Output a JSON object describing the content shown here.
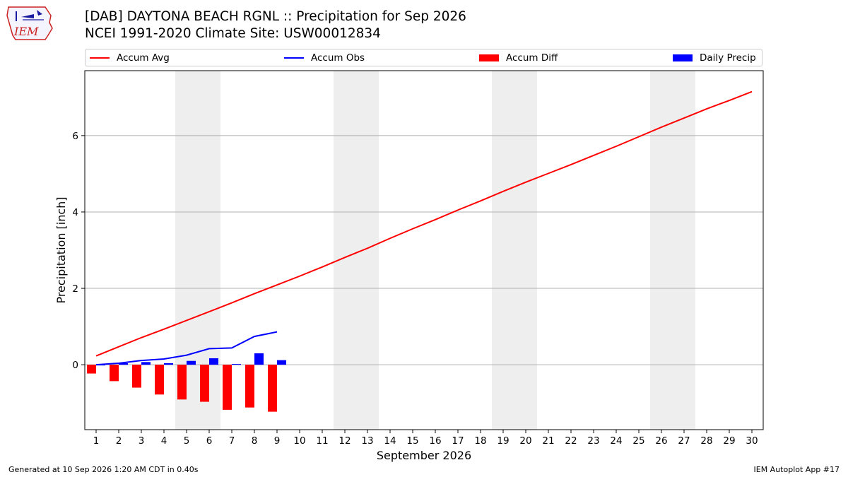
{
  "header": {
    "title_line1": "[DAB] DAYTONA BEACH RGNL :: Precipitation for Sep 2026",
    "title_line2": "NCEI 1991-2020 Climate Site: USW00012834",
    "logo_text": "IEM"
  },
  "legend": [
    {
      "label": "Accum Avg",
      "kind": "line",
      "color": "#ff0000"
    },
    {
      "label": "Accum Obs",
      "kind": "line",
      "color": "#0000ff"
    },
    {
      "label": "Accum Diff",
      "kind": "patch",
      "color": "#ff0000"
    },
    {
      "label": "Daily Precip",
      "kind": "patch",
      "color": "#0000ff"
    }
  ],
  "footer": {
    "left": "Generated at 10 Sep 2026 1:20 AM CDT in 0.40s",
    "right": "IEM Autoplot App #17"
  },
  "chart_data": {
    "type": "bar",
    "title": "[DAB] DAYTONA BEACH RGNL :: Precipitation for Sep 2026",
    "xlabel": "September 2026",
    "ylabel": "Precipitation [inch]",
    "xlim": [
      0.5,
      30.5
    ],
    "ylim": [
      -1.7,
      7.7
    ],
    "xticks": [
      1,
      2,
      3,
      4,
      5,
      6,
      7,
      8,
      9,
      10,
      11,
      12,
      13,
      14,
      15,
      16,
      17,
      18,
      19,
      20,
      21,
      22,
      23,
      24,
      25,
      26,
      27,
      28,
      29,
      30
    ],
    "yticks": [
      0,
      2,
      4,
      6
    ],
    "grid": "y",
    "legend_position": "top",
    "weekend_bands": [
      [
        4.5,
        6.5
      ],
      [
        11.5,
        13.5
      ],
      [
        18.5,
        20.5
      ],
      [
        25.5,
        27.5
      ]
    ],
    "colors": {
      "avg": "#ff0000",
      "obs": "#0000ff",
      "diff": "#ff0000",
      "daily": "#0000ff",
      "band": "#eeeeee",
      "grid": "#b0b0b0"
    },
    "series": [
      {
        "name": "Accum Avg",
        "type": "line",
        "x": [
          1,
          2,
          3,
          4,
          5,
          6,
          7,
          8,
          9,
          10,
          11,
          12,
          13,
          14,
          15,
          16,
          17,
          18,
          19,
          20,
          21,
          22,
          23,
          24,
          25,
          26,
          27,
          28,
          29,
          30
        ],
        "values": [
          0.23,
          0.47,
          0.71,
          0.93,
          1.16,
          1.39,
          1.62,
          1.86,
          2.09,
          2.32,
          2.56,
          2.81,
          3.05,
          3.31,
          3.56,
          3.8,
          4.05,
          4.29,
          4.54,
          4.78,
          5.01,
          5.24,
          5.48,
          5.72,
          5.97,
          6.22,
          6.46,
          6.7,
          6.92,
          7.15
        ]
      },
      {
        "name": "Accum Obs",
        "type": "line",
        "x": [
          1,
          2,
          3,
          4,
          5,
          6,
          7,
          8,
          9
        ],
        "values": [
          0.0,
          0.04,
          0.11,
          0.15,
          0.25,
          0.42,
          0.44,
          0.74,
          0.86
        ]
      },
      {
        "name": "Accum Diff",
        "type": "bar",
        "x": [
          1,
          2,
          3,
          4,
          5,
          6,
          7,
          8,
          9
        ],
        "values": [
          -0.23,
          -0.43,
          -0.6,
          -0.78,
          -0.91,
          -0.97,
          -1.18,
          -1.12,
          -1.23
        ]
      },
      {
        "name": "Daily Precip",
        "type": "bar",
        "x": [
          1,
          2,
          3,
          4,
          5,
          6,
          7,
          8,
          9
        ],
        "values": [
          0.0,
          0.04,
          0.07,
          0.04,
          0.1,
          0.17,
          0.02,
          0.3,
          0.12
        ]
      }
    ]
  }
}
